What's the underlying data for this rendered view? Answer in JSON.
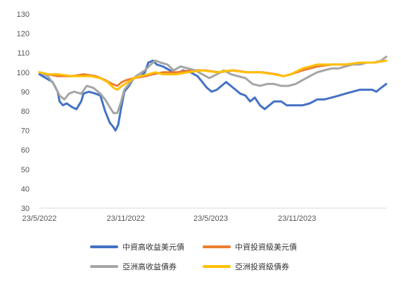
{
  "chart_data": {
    "type": "line",
    "title": "",
    "xlabel": "",
    "ylabel": "",
    "ylim": [
      30,
      130
    ],
    "yticks": [
      30,
      40,
      50,
      60,
      70,
      80,
      90,
      100,
      110,
      120,
      130
    ],
    "xlim": [
      "2022-05-23",
      "2024-05-31"
    ],
    "xtick_labels": [
      {
        "label": "23/5/2022",
        "date": "2022-05-23"
      },
      {
        "label": "23/11/2022",
        "date": "2022-11-23"
      },
      {
        "label": "23/5/2023",
        "date": "2023-05-23"
      },
      {
        "label": "23/11/2023",
        "date": "2023-11-23"
      }
    ],
    "grid": false,
    "legend_position": "bottom",
    "series": [
      {
        "name": "中資高收益美元債",
        "color": "#4472C4",
        "points": [
          [
            "2022-05-23",
            99
          ],
          [
            "2022-06-06",
            97
          ],
          [
            "2022-06-20",
            95
          ],
          [
            "2022-07-01",
            90
          ],
          [
            "2022-07-05",
            85
          ],
          [
            "2022-07-12",
            83
          ],
          [
            "2022-07-20",
            84
          ],
          [
            "2022-08-01",
            82
          ],
          [
            "2022-08-10",
            81
          ],
          [
            "2022-08-20",
            85
          ],
          [
            "2022-08-25",
            89
          ],
          [
            "2022-09-05",
            90
          ],
          [
            "2022-09-20",
            89
          ],
          [
            "2022-09-30",
            88
          ],
          [
            "2022-10-10",
            80
          ],
          [
            "2022-10-20",
            74
          ],
          [
            "2022-10-27",
            72
          ],
          [
            "2022-11-01",
            70
          ],
          [
            "2022-11-07",
            73
          ],
          [
            "2022-11-12",
            80
          ],
          [
            "2022-11-20",
            90
          ],
          [
            "2022-11-30",
            93
          ],
          [
            "2022-12-10",
            97
          ],
          [
            "2022-12-25",
            98
          ],
          [
            "2023-01-03",
            100
          ],
          [
            "2023-01-10",
            105
          ],
          [
            "2023-01-20",
            106
          ],
          [
            "2023-01-28",
            104
          ],
          [
            "2023-02-10",
            103
          ],
          [
            "2023-02-25",
            101
          ],
          [
            "2023-03-10",
            99
          ],
          [
            "2023-03-25",
            101
          ],
          [
            "2023-04-10",
            100
          ],
          [
            "2023-04-25",
            98
          ],
          [
            "2023-05-05",
            95
          ],
          [
            "2023-05-15",
            92
          ],
          [
            "2023-05-25",
            90
          ],
          [
            "2023-06-05",
            91
          ],
          [
            "2023-06-15",
            93
          ],
          [
            "2023-06-25",
            95
          ],
          [
            "2023-07-05",
            93
          ],
          [
            "2023-07-15",
            91
          ],
          [
            "2023-07-25",
            89
          ],
          [
            "2023-08-05",
            88
          ],
          [
            "2023-08-15",
            85
          ],
          [
            "2023-08-25",
            87
          ],
          [
            "2023-09-05",
            83
          ],
          [
            "2023-09-15",
            81
          ],
          [
            "2023-09-25",
            83
          ],
          [
            "2023-10-05",
            85
          ],
          [
            "2023-10-20",
            85
          ],
          [
            "2023-11-01",
            83
          ],
          [
            "2023-11-15",
            83
          ],
          [
            "2023-12-05",
            83
          ],
          [
            "2023-12-20",
            84
          ],
          [
            "2024-01-05",
            86
          ],
          [
            "2024-01-20",
            86
          ],
          [
            "2024-02-05",
            87
          ],
          [
            "2024-02-20",
            88
          ],
          [
            "2024-03-05",
            89
          ],
          [
            "2024-03-20",
            90
          ],
          [
            "2024-04-05",
            91
          ],
          [
            "2024-04-20",
            91
          ],
          [
            "2024-05-01",
            91
          ],
          [
            "2024-05-10",
            90
          ],
          [
            "2024-05-20",
            92
          ],
          [
            "2024-05-31",
            94
          ]
        ]
      },
      {
        "name": "中資投資級美元債",
        "color": "#ED7D31",
        "points": [
          [
            "2022-05-23",
            100
          ],
          [
            "2022-06-10",
            99
          ],
          [
            "2022-07-01",
            98
          ],
          [
            "2022-08-01",
            98
          ],
          [
            "2022-08-25",
            99
          ],
          [
            "2022-09-20",
            98
          ],
          [
            "2022-10-10",
            96
          ],
          [
            "2022-10-25",
            94
          ],
          [
            "2022-11-05",
            93
          ],
          [
            "2022-11-15",
            95
          ],
          [
            "2022-11-25",
            96
          ],
          [
            "2022-12-10",
            97
          ],
          [
            "2023-01-05",
            98
          ],
          [
            "2023-01-20",
            99
          ],
          [
            "2023-02-10",
            100
          ],
          [
            "2023-03-10",
            100
          ],
          [
            "2023-04-10",
            101
          ],
          [
            "2023-05-10",
            101
          ],
          [
            "2023-06-10",
            100
          ],
          [
            "2023-07-10",
            101
          ],
          [
            "2023-08-10",
            100
          ],
          [
            "2023-09-10",
            100
          ],
          [
            "2023-10-10",
            99
          ],
          [
            "2023-10-25",
            98
          ],
          [
            "2023-11-10",
            99
          ],
          [
            "2023-12-05",
            101
          ],
          [
            "2024-01-05",
            103
          ],
          [
            "2024-02-05",
            104
          ],
          [
            "2024-03-05",
            104
          ],
          [
            "2024-04-05",
            105
          ],
          [
            "2024-05-05",
            105
          ],
          [
            "2024-05-31",
            106
          ]
        ]
      },
      {
        "name": "亞洲高收益債券",
        "color": "#A5A5A5",
        "points": [
          [
            "2022-05-23",
            100
          ],
          [
            "2022-06-10",
            98
          ],
          [
            "2022-06-25",
            93
          ],
          [
            "2022-07-05",
            88
          ],
          [
            "2022-07-15",
            86
          ],
          [
            "2022-07-25",
            89
          ],
          [
            "2022-08-05",
            90
          ],
          [
            "2022-08-20",
            89
          ],
          [
            "2022-09-01",
            93
          ],
          [
            "2022-09-15",
            92
          ],
          [
            "2022-09-30",
            89
          ],
          [
            "2022-10-10",
            86
          ],
          [
            "2022-10-20",
            82
          ],
          [
            "2022-10-28",
            79
          ],
          [
            "2022-11-05",
            79
          ],
          [
            "2022-11-12",
            84
          ],
          [
            "2022-11-20",
            91
          ],
          [
            "2022-11-30",
            94
          ],
          [
            "2022-12-15",
            98
          ],
          [
            "2023-01-03",
            101
          ],
          [
            "2023-01-15",
            104
          ],
          [
            "2023-01-25",
            106
          ],
          [
            "2023-02-05",
            105
          ],
          [
            "2023-02-20",
            104
          ],
          [
            "2023-03-05",
            101
          ],
          [
            "2023-03-20",
            103
          ],
          [
            "2023-04-05",
            102
          ],
          [
            "2023-04-20",
            101
          ],
          [
            "2023-05-05",
            99
          ],
          [
            "2023-05-20",
            97
          ],
          [
            "2023-06-05",
            99
          ],
          [
            "2023-06-20",
            101
          ],
          [
            "2023-07-05",
            99
          ],
          [
            "2023-07-20",
            98
          ],
          [
            "2023-08-05",
            97
          ],
          [
            "2023-08-20",
            94
          ],
          [
            "2023-09-05",
            93
          ],
          [
            "2023-09-20",
            94
          ],
          [
            "2023-10-05",
            94
          ],
          [
            "2023-10-20",
            93
          ],
          [
            "2023-11-05",
            93
          ],
          [
            "2023-11-20",
            94
          ],
          [
            "2023-12-05",
            96
          ],
          [
            "2023-12-20",
            98
          ],
          [
            "2024-01-05",
            100
          ],
          [
            "2024-01-20",
            101
          ],
          [
            "2024-02-05",
            102
          ],
          [
            "2024-02-20",
            102
          ],
          [
            "2024-03-05",
            103
          ],
          [
            "2024-03-20",
            104
          ],
          [
            "2024-04-05",
            104
          ],
          [
            "2024-04-20",
            105
          ],
          [
            "2024-05-05",
            105
          ],
          [
            "2024-05-20",
            106
          ],
          [
            "2024-05-31",
            108
          ]
        ]
      },
      {
        "name": "亞洲投資級債券",
        "color": "#FFC000",
        "points": [
          [
            "2022-05-23",
            100
          ],
          [
            "2022-06-10",
            99
          ],
          [
            "2022-07-01",
            99
          ],
          [
            "2022-08-01",
            98
          ],
          [
            "2022-08-20",
            98
          ],
          [
            "2022-09-10",
            98
          ],
          [
            "2022-09-30",
            97
          ],
          [
            "2022-10-15",
            95
          ],
          [
            "2022-10-28",
            92
          ],
          [
            "2022-11-05",
            91
          ],
          [
            "2022-11-15",
            93
          ],
          [
            "2022-11-28",
            95
          ],
          [
            "2022-12-10",
            97
          ],
          [
            "2022-12-25",
            98
          ],
          [
            "2023-01-10",
            99
          ],
          [
            "2023-01-25",
            100
          ],
          [
            "2023-02-10",
            99
          ],
          [
            "2023-03-10",
            99
          ],
          [
            "2023-04-05",
            100
          ],
          [
            "2023-05-05",
            101
          ],
          [
            "2023-06-05",
            100
          ],
          [
            "2023-07-05",
            101
          ],
          [
            "2023-08-05",
            100
          ],
          [
            "2023-09-05",
            100
          ],
          [
            "2023-10-05",
            99
          ],
          [
            "2023-10-25",
            98
          ],
          [
            "2023-11-10",
            99
          ],
          [
            "2023-12-05",
            102
          ],
          [
            "2024-01-05",
            104
          ],
          [
            "2024-02-05",
            104
          ],
          [
            "2024-03-05",
            104
          ],
          [
            "2024-04-05",
            105
          ],
          [
            "2024-05-05",
            105
          ],
          [
            "2024-05-31",
            106
          ]
        ]
      }
    ]
  }
}
